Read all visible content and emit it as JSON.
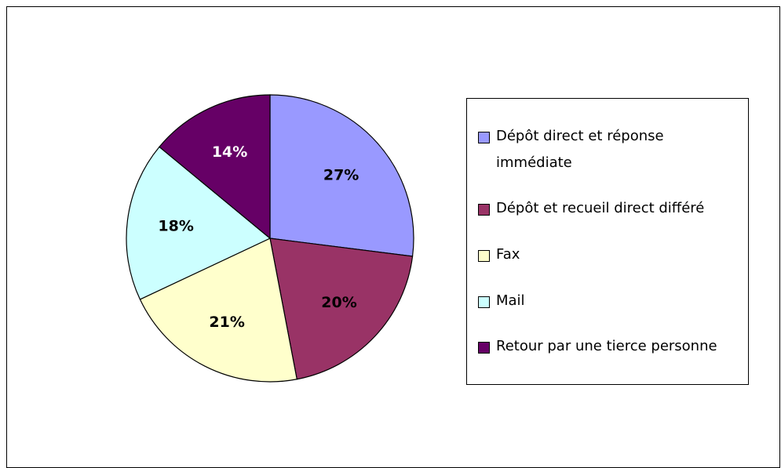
{
  "chart_data": {
    "type": "pie",
    "categories": [
      "Dépôt direct et réponse immédiate",
      "Dépôt et recueil direct différé",
      "Fax",
      "Mail",
      "Retour par une tierce personne"
    ],
    "values": [
      27,
      20,
      21,
      18,
      14
    ],
    "value_labels": [
      "27%",
      "20%",
      "21%",
      "18%",
      "14%"
    ],
    "colors": [
      "#9999ff",
      "#993366",
      "#ffffcc",
      "#ccffff",
      "#660066"
    ],
    "legend": "right"
  }
}
